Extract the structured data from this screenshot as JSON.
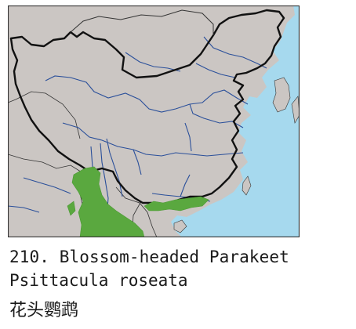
{
  "caption": {
    "line1": "210. Blossom-headed Parakeet",
    "line2": "Psittacula roseata",
    "line3": "花头鹦鹉"
  },
  "colors": {
    "land": "#cbc6c3",
    "sea": "#a6d9ee",
    "border": "#111111",
    "river": "#2a4f9a",
    "range": "#5aa83f",
    "frame": "#333333"
  },
  "icons": [
    "china-border",
    "rivers",
    "species-range"
  ]
}
